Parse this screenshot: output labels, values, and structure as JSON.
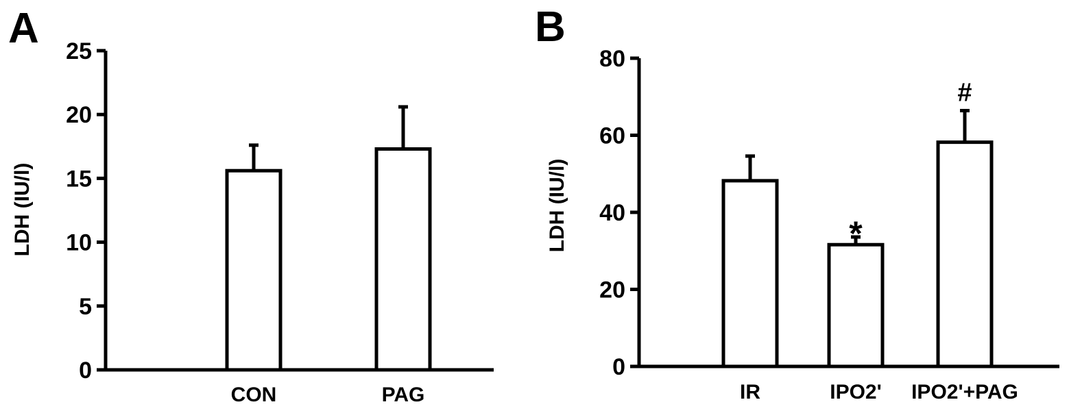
{
  "chart_data": [
    {
      "panel_label": "A",
      "type": "bar",
      "categories": [
        "CON",
        "PAG"
      ],
      "values": [
        15.6,
        17.3
      ],
      "errors": [
        2.0,
        3.3
      ],
      "annotations": [
        "",
        ""
      ],
      "ylabel": "LDH (IU/l)",
      "xlabel": "",
      "title": "",
      "ylim": [
        0,
        25
      ],
      "yticks": [
        0,
        5,
        10,
        15,
        20,
        25
      ],
      "grid": false,
      "legend": "none",
      "bar_fill": "#ffffff",
      "bar_stroke": "#000000"
    },
    {
      "panel_label": "B",
      "type": "bar",
      "categories": [
        "IR",
        "IPO2'",
        "IPO2'+PAG"
      ],
      "values": [
        48.2,
        31.6,
        58.2
      ],
      "errors": [
        6.4,
        2.0,
        8.2
      ],
      "annotations": [
        "",
        "*",
        "#"
      ],
      "ylabel": "LDH (IU/l)",
      "xlabel": "",
      "title": "",
      "ylim": [
        0,
        80
      ],
      "yticks": [
        0,
        20,
        40,
        60,
        80
      ],
      "grid": false,
      "legend": "none",
      "bar_fill": "#ffffff",
      "bar_stroke": "#000000"
    }
  ]
}
